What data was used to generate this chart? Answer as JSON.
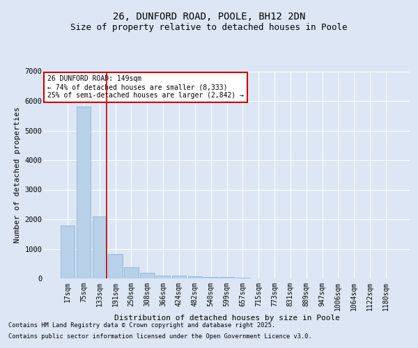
{
  "title1": "26, DUNFORD ROAD, POOLE, BH12 2DN",
  "title2": "Size of property relative to detached houses in Poole",
  "xlabel": "Distribution of detached houses by size in Poole",
  "ylabel": "Number of detached properties",
  "categories": [
    "17sqm",
    "75sqm",
    "133sqm",
    "191sqm",
    "250sqm",
    "308sqm",
    "366sqm",
    "424sqm",
    "482sqm",
    "540sqm",
    "599sqm",
    "657sqm",
    "715sqm",
    "773sqm",
    "831sqm",
    "889sqm",
    "947sqm",
    "1006sqm",
    "1064sqm",
    "1122sqm",
    "1180sqm"
  ],
  "values": [
    1780,
    5820,
    2100,
    820,
    380,
    200,
    100,
    90,
    70,
    50,
    40,
    15,
    10,
    8,
    5,
    4,
    3,
    2,
    2,
    1,
    1
  ],
  "bar_color": "#b8d0e8",
  "bar_edge_color": "#7aafd4",
  "red_line_x": 2,
  "annotation_text": "26 DUNFORD ROAD: 149sqm\n← 74% of detached houses are smaller (8,333)\n25% of semi-detached houses are larger (2,842) →",
  "annotation_box_color": "#ffffff",
  "annotation_box_edge_color": "#cc0000",
  "ylim": [
    0,
    7000
  ],
  "yticks": [
    0,
    1000,
    2000,
    3000,
    4000,
    5000,
    6000,
    7000
  ],
  "bg_color": "#dce6f5",
  "plot_bg_color": "#dce6f5",
  "footer1": "Contains HM Land Registry data © Crown copyright and database right 2025.",
  "footer2": "Contains public sector information licensed under the Open Government Licence v3.0.",
  "grid_color": "#ffffff",
  "title_fontsize": 10,
  "subtitle_fontsize": 9,
  "axis_label_fontsize": 8,
  "tick_fontsize": 7,
  "annot_fontsize": 7
}
